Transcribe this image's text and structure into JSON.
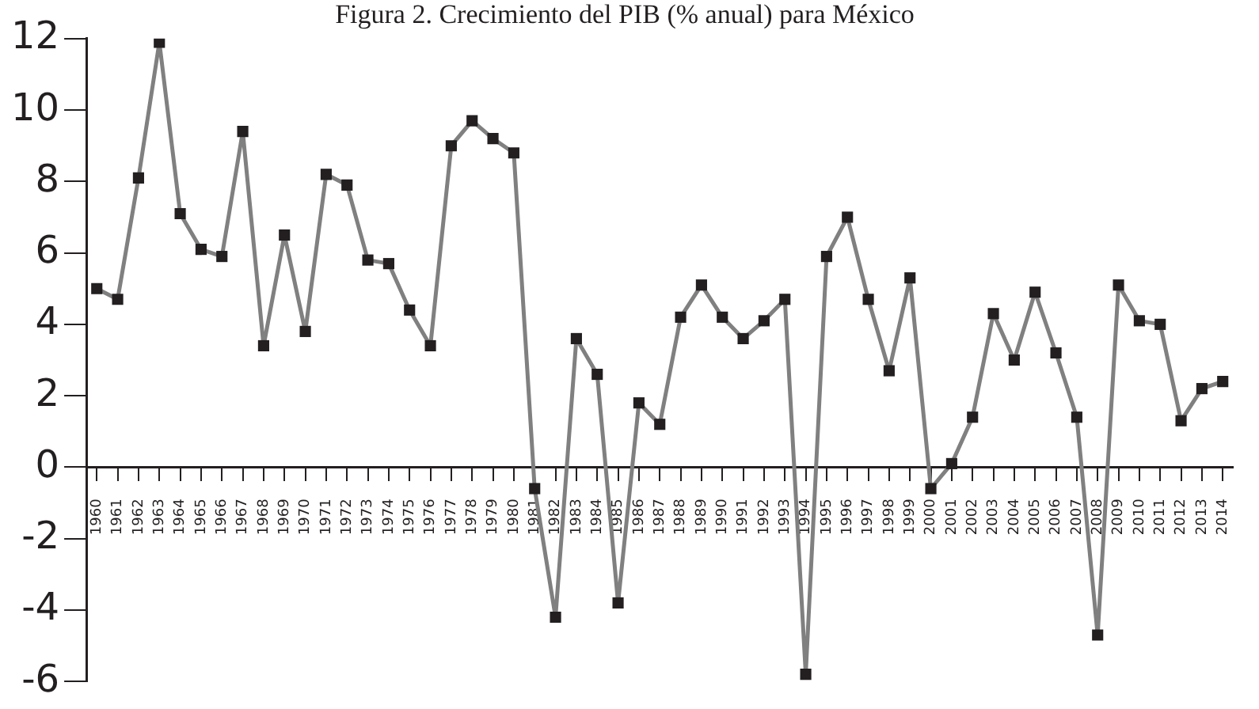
{
  "chart_data": {
    "type": "line",
    "title": "Figura 2. Crecimiento del PIB (% anual) para México",
    "categories": [
      "1960",
      "1961",
      "1962",
      "1963",
      "1964",
      "1965",
      "1966",
      "1967",
      "1968",
      "1969",
      "1970",
      "1971",
      "1972",
      "1973",
      "1974",
      "1975",
      "1976",
      "1977",
      "1978",
      "1979",
      "1980",
      "1981",
      "1982",
      "1983",
      "1984",
      "1985",
      "1986",
      "1987",
      "1988",
      "1989",
      "1990",
      "1991",
      "1992",
      "1993",
      "1994",
      "1995",
      "1996",
      "1997",
      "1998",
      "1999",
      "2000",
      "2001",
      "2002",
      "2003",
      "2004",
      "2005",
      "2006",
      "2007",
      "2008",
      "2009",
      "2010",
      "2011",
      "2012",
      "2013",
      "2014"
    ],
    "series": [
      {
        "color": "#808080",
        "values": [
          5.0,
          4.7,
          8.1,
          11.9,
          7.1,
          6.1,
          5.9,
          9.4,
          3.4,
          6.5,
          3.8,
          8.2,
          7.9,
          5.8,
          5.7,
          4.4,
          3.4,
          9.0,
          9.7,
          9.2,
          8.8,
          -0.6,
          -4.2,
          3.6,
          2.6,
          -3.8,
          1.8,
          1.2,
          4.2,
          5.1,
          4.2,
          3.6,
          4.1,
          4.7,
          -5.8,
          5.9,
          7.0,
          4.7,
          2.7,
          5.3,
          -0.6,
          0.1,
          1.4,
          4.3,
          3.0,
          4.9,
          3.2,
          1.4,
          -4.7,
          5.1,
          4.1,
          4.0,
          1.3,
          2.2,
          2.4
        ]
      }
    ],
    "ylim": [
      -6,
      12
    ],
    "yticks": [
      -6,
      -4,
      -2,
      0,
      2,
      4,
      6,
      8,
      10,
      12
    ],
    "grid": false,
    "legend": false,
    "marker": "square",
    "line_style": "solid"
  }
}
